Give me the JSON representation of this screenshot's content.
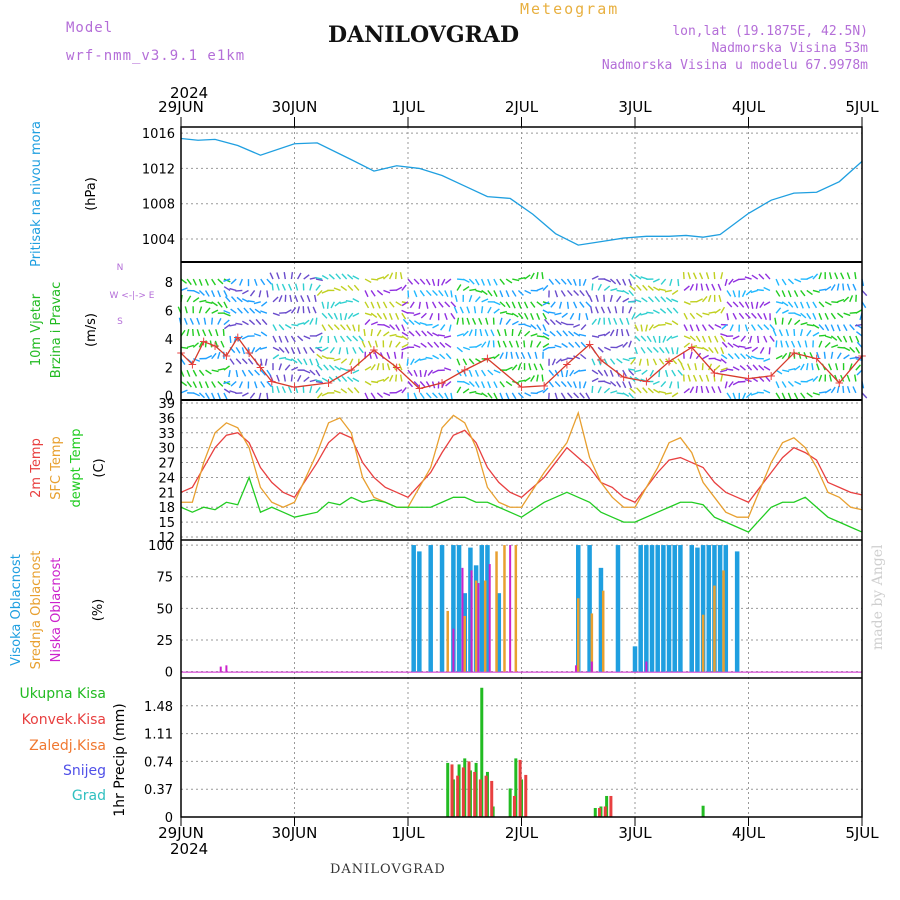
{
  "header": {
    "model_label": "Model",
    "model_name": "wrf-nmm_v3.9.1 e1km",
    "title": "DANILOVGRAD",
    "meteogram": "Meteogram",
    "lonlat": "lon,lat (19.1875E, 42.5N)",
    "elevation": "Nadmorska Visina 53m",
    "model_elevation": "Nadmorska Visina u modelu 67.9978m"
  },
  "footer": {
    "station": "DANILOVGRAD",
    "credit": "made by Angel"
  },
  "colors": {
    "pressure": "#1f9fe0",
    "wind_title": "#22bb22",
    "temp2m": "#e84040",
    "sfc": "#e8a030",
    "dewpt": "#22cc22",
    "high_cloud": "#1f9fe0",
    "mid_cloud": "#e8a030",
    "low_cloud": "#cc22cc",
    "total_precip": "#22bb22",
    "conv_precip": "#e84040",
    "frozen": "#f07830",
    "snow": "#5050e8",
    "hail": "#30c0c0",
    "compass": "#b46ed8"
  },
  "chart_data": [
    {
      "type": "line",
      "panel": "pressure",
      "ylabel": "Pritisak na nivou mora",
      "unit": "(hPa)",
      "ylim": [
        1001.5,
        1016.7
      ],
      "yticks": [
        1004,
        1008,
        1012,
        1016
      ],
      "year": "2024",
      "xtick_labels": [
        "29JUN",
        "30JUN",
        "1JUL",
        "2JUL",
        "3JUL",
        "4JUL",
        "5JUL"
      ],
      "x": [
        0,
        0.15,
        0.3,
        0.5,
        0.7,
        1.0,
        1.2,
        1.5,
        1.7,
        1.9,
        2.1,
        2.3,
        2.5,
        2.7,
        2.9,
        3.1,
        3.3,
        3.5,
        3.7,
        3.9,
        4.1,
        4.3,
        4.45,
        4.6,
        4.75,
        5.0,
        5.2,
        5.4,
        5.6,
        5.8,
        6.0
      ],
      "values": [
        1015.4,
        1015.2,
        1015.3,
        1014.6,
        1013.5,
        1014.8,
        1014.9,
        1013.0,
        1011.7,
        1012.3,
        1012.0,
        1011.2,
        1010.0,
        1008.8,
        1008.6,
        1006.8,
        1004.6,
        1003.3,
        1003.7,
        1004.1,
        1004.3,
        1004.3,
        1004.4,
        1004.2,
        1004.5,
        1006.9,
        1008.4,
        1009.2,
        1009.3,
        1010.5,
        1012.8
      ]
    },
    {
      "type": "line",
      "panel": "wind",
      "ylabel_1": "10m Vjetar",
      "ylabel_2": "Brzina i Pravac",
      "unit": "(m/s)",
      "ylim": [
        -0.3,
        9.4
      ],
      "yticks": [
        0,
        2,
        4,
        6,
        8
      ],
      "compass_text": "W <-|-> E",
      "compass_n": "N",
      "compass_s": "S",
      "x": [
        0,
        0.1,
        0.2,
        0.3,
        0.4,
        0.5,
        0.6,
        0.7,
        0.8,
        1.0,
        1.3,
        1.5,
        1.7,
        1.9,
        2.1,
        2.3,
        2.5,
        2.7,
        3.0,
        3.2,
        3.4,
        3.6,
        3.7,
        3.9,
        4.1,
        4.3,
        4.5,
        4.7,
        5.0,
        5.2,
        5.4,
        5.6,
        5.8,
        6.0
      ],
      "values": [
        3.0,
        2.2,
        3.8,
        3.5,
        2.8,
        4.1,
        3.0,
        2.0,
        1.0,
        0.6,
        0.9,
        1.8,
        3.2,
        2.0,
        0.5,
        0.9,
        1.8,
        2.6,
        0.6,
        0.7,
        2.2,
        3.6,
        2.5,
        1.3,
        1.0,
        2.4,
        3.4,
        1.6,
        1.2,
        1.4,
        3.0,
        2.6,
        0.9,
        2.8
      ]
    },
    {
      "type": "line",
      "panel": "temperature",
      "ylabels": [
        "2m Temp",
        "SFC Temp",
        "dewpt Temp"
      ],
      "unit": "(C)",
      "ylim": [
        11.4,
        39.6
      ],
      "yticks": [
        12,
        15,
        18,
        21,
        24,
        27,
        30,
        33,
        36,
        39
      ],
      "x": [
        0,
        0.1,
        0.2,
        0.3,
        0.4,
        0.5,
        0.6,
        0.7,
        0.8,
        0.9,
        1.0,
        1.2,
        1.3,
        1.4,
        1.5,
        1.6,
        1.7,
        1.8,
        1.9,
        2.0,
        2.2,
        2.3,
        2.4,
        2.5,
        2.6,
        2.7,
        2.8,
        2.9,
        3.0,
        3.2,
        3.3,
        3.4,
        3.5,
        3.6,
        3.7,
        3.8,
        3.9,
        4.0,
        4.2,
        4.3,
        4.4,
        4.5,
        4.6,
        4.7,
        4.8,
        4.9,
        5.0,
        5.2,
        5.3,
        5.4,
        5.5,
        5.6,
        5.7,
        5.8,
        5.9,
        6.0
      ],
      "series": [
        {
          "name": "2m Temp",
          "values": [
            21,
            22,
            26,
            30,
            32.5,
            33,
            31,
            26,
            23,
            21,
            20,
            27,
            31,
            33,
            32,
            27,
            24,
            22,
            21,
            20,
            25,
            29,
            32.5,
            33.5,
            31,
            26,
            23,
            21,
            20,
            24,
            27,
            30,
            28,
            26,
            23,
            22,
            20,
            19,
            25,
            27.5,
            28,
            27,
            26,
            23,
            21,
            20,
            19,
            25,
            28,
            30,
            29,
            27.5,
            23,
            22,
            21,
            20.5
          ]
        },
        {
          "name": "SFC Temp",
          "values": [
            19,
            19,
            27,
            33,
            35,
            34,
            30,
            22,
            19,
            18,
            19,
            29,
            35,
            36,
            33,
            24,
            20,
            19,
            18,
            18,
            26,
            34,
            36.5,
            35,
            30,
            22,
            19,
            18,
            18,
            25,
            28,
            31,
            37,
            28,
            23,
            20,
            18,
            18,
            26,
            31,
            32,
            29,
            23,
            20,
            17,
            16,
            16,
            27,
            31,
            32,
            30,
            26,
            21,
            20,
            18,
            17.5
          ]
        },
        {
          "name": "dewpt Temp",
          "values": [
            18,
            17,
            18,
            17.5,
            19,
            18.5,
            24,
            17,
            18,
            17,
            16,
            17,
            19,
            18.5,
            20,
            19,
            19.5,
            19,
            18,
            18,
            18,
            19,
            20,
            20,
            19,
            19,
            18,
            17,
            16,
            19,
            20,
            21,
            20,
            19,
            17,
            16,
            15,
            15,
            17,
            18,
            19,
            19,
            18.5,
            16,
            15,
            14,
            13,
            18,
            19,
            19,
            20,
            18,
            16,
            15,
            14,
            13
          ]
        }
      ]
    },
    {
      "type": "bar",
      "panel": "clouds",
      "ylabels": [
        "Visoka Oblacnost",
        "Srednja Oblacnost",
        "Niska Oblacnost"
      ],
      "unit": "(%)",
      "ylim": [
        -5,
        104
      ],
      "yticks": [
        0,
        25,
        50,
        75,
        100
      ],
      "series": [
        {
          "name": "Visoka Oblacnost",
          "x": [
            2.05,
            2.1,
            2.2,
            2.3,
            2.4,
            2.45,
            2.5,
            2.55,
            2.6,
            2.65,
            2.7,
            2.8,
            3.5,
            3.6,
            3.7,
            3.85,
            4.0,
            4.05,
            4.1,
            4.15,
            4.2,
            4.25,
            4.3,
            4.35,
            4.4,
            4.5,
            4.55,
            4.6,
            4.65,
            4.7,
            4.75,
            4.8,
            4.9
          ],
          "values": [
            100,
            95,
            100,
            100,
            100,
            100,
            62,
            98,
            84,
            100,
            100,
            62,
            100,
            100,
            82,
            100,
            20,
            100,
            100,
            100,
            100,
            100,
            100,
            100,
            100,
            100,
            98,
            100,
            100,
            100,
            100,
            100,
            95
          ]
        },
        {
          "name": "Srednja Oblacnost",
          "x": [
            2.35,
            2.5,
            2.6,
            2.68,
            2.78,
            2.85,
            2.95,
            3.5,
            3.62,
            3.72,
            4.6,
            4.7,
            4.78
          ],
          "values": [
            48,
            44,
            72,
            72,
            95,
            100,
            100,
            58,
            46,
            64,
            45,
            68,
            80
          ]
        },
        {
          "name": "Niska Oblacnost",
          "x": [
            0.35,
            0.4,
            2.4,
            2.48,
            2.56,
            2.62,
            2.72,
            2.9,
            3.48,
            3.62,
            4.1
          ],
          "values": [
            4,
            5,
            34,
            82,
            80,
            70,
            85,
            100,
            5,
            8,
            8
          ]
        }
      ]
    },
    {
      "type": "bar",
      "panel": "precipitation",
      "ylabels": [
        "Ukupna Kisa",
        "Konvek.Kisa",
        "Zaledj.Kisa",
        "Snijeg",
        "Grad"
      ],
      "unit": "1hr Precip (mm)",
      "ylim": [
        0,
        1.85
      ],
      "yticks": [
        0,
        0.37,
        0.74,
        1.11,
        1.48
      ],
      "series": [
        {
          "name": "Ukupna Kisa",
          "x": [
            2.35,
            2.4,
            2.45,
            2.5,
            2.55,
            2.6,
            2.65,
            2.7,
            2.75,
            2.9,
            2.95,
            3.0,
            3.65,
            3.7,
            3.75,
            4.6
          ],
          "values": [
            0.72,
            0.5,
            0.7,
            0.78,
            0.62,
            0.72,
            1.72,
            0.6,
            0.14,
            0.38,
            0.78,
            0.5,
            0.12,
            0.14,
            0.28,
            0.15
          ]
        },
        {
          "name": "Konvek.Kisa",
          "x": [
            2.37,
            2.42,
            2.47,
            2.52,
            2.57,
            2.62,
            2.67,
            2.72,
            2.92,
            2.97,
            3.02,
            3.67,
            3.72,
            3.77
          ],
          "values": [
            0.7,
            0.55,
            0.66,
            0.74,
            0.6,
            0.5,
            0.55,
            0.48,
            0.28,
            0.76,
            0.56,
            0.12,
            0.14,
            0.28
          ]
        }
      ]
    }
  ]
}
